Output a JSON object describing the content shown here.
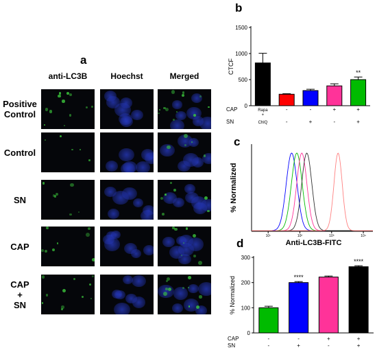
{
  "panel_labels": {
    "a": "a",
    "b": "b",
    "c": "c",
    "d": "d"
  },
  "micrograph": {
    "columns": [
      "anti-LC3B",
      "Hoechst",
      "Merged"
    ],
    "rows": [
      {
        "lines": [
          "Positive",
          "Control"
        ],
        "green": 0.85
      },
      {
        "lines": [
          "Control"
        ],
        "green": 0.35
      },
      {
        "lines": [
          "SN"
        ],
        "green": 0.5
      },
      {
        "lines": [
          "CAP"
        ],
        "green": 0.6
      },
      {
        "lines": [
          "CAP",
          "+",
          "SN"
        ],
        "green": 0.75
      }
    ]
  },
  "chart_data": [
    {
      "panel": "b",
      "type": "bar",
      "ylabel": "CTCF",
      "ylim": [
        0,
        1500
      ],
      "yticks": [
        0,
        500,
        1000,
        1500
      ],
      "categories": [
        "Rapa + ChlQ",
        "-/-",
        "-/+",
        "+/-",
        "+/+"
      ],
      "values": [
        820,
        220,
        290,
        380,
        500
      ],
      "errors": [
        185,
        10,
        25,
        40,
        50
      ],
      "colors": [
        "#000000",
        "#ff0000",
        "#0000ff",
        "#ff3399",
        "#00bb00"
      ],
      "significance": [
        "",
        "",
        "",
        "",
        "**"
      ],
      "conditions": [
        {
          "label": "CAP",
          "values": [
            "Rapa\n+",
            "-",
            "-",
            "+",
            "+"
          ]
        },
        {
          "label": "SN",
          "values": [
            "ChlQ",
            "-",
            "+",
            "-",
            "+"
          ]
        }
      ]
    },
    {
      "panel": "c",
      "type": "line",
      "ylabel": "% Normalized",
      "xscale": "log",
      "xticks": [
        {
          "v": 10,
          "label": "10¹"
        },
        {
          "v": 100,
          "label": "10²"
        },
        {
          "v": 1000,
          "label": "10³"
        },
        {
          "v": 10000,
          "label": "10⁴"
        }
      ],
      "xlim": [
        3,
        20000
      ],
      "series": [
        {
          "color": "#0000ff",
          "peak": 55,
          "width": 0.17
        },
        {
          "color": "#00bb00",
          "peak": 80,
          "width": 0.17
        },
        {
          "color": "#ff3399",
          "peak": 115,
          "width": 0.16
        },
        {
          "color": "#303030",
          "peak": 165,
          "width": 0.16
        },
        {
          "color": "#ff8080",
          "peak": 1600,
          "width": 0.13
        }
      ]
    },
    {
      "panel": "d",
      "type": "bar",
      "title": "Anti-LC3B-FITC",
      "ylabel": "% Normalized",
      "ylim": [
        0,
        300
      ],
      "yticks": [
        0,
        100,
        200,
        300
      ],
      "categories": [
        "-/-",
        "-/+",
        "+/-",
        "+/+"
      ],
      "values": [
        100,
        200,
        222,
        263
      ],
      "errors": [
        6,
        4,
        4,
        4
      ],
      "colors": [
        "#00bb00",
        "#0000ff",
        "#ff3399",
        "#000000"
      ],
      "significance": [
        "",
        "****",
        "",
        "****"
      ],
      "conditions": [
        {
          "label": "CAP",
          "values": [
            "-",
            "-",
            "+",
            "+"
          ]
        },
        {
          "label": "SN",
          "values": [
            "-",
            "+",
            "-",
            "+"
          ]
        }
      ]
    }
  ]
}
